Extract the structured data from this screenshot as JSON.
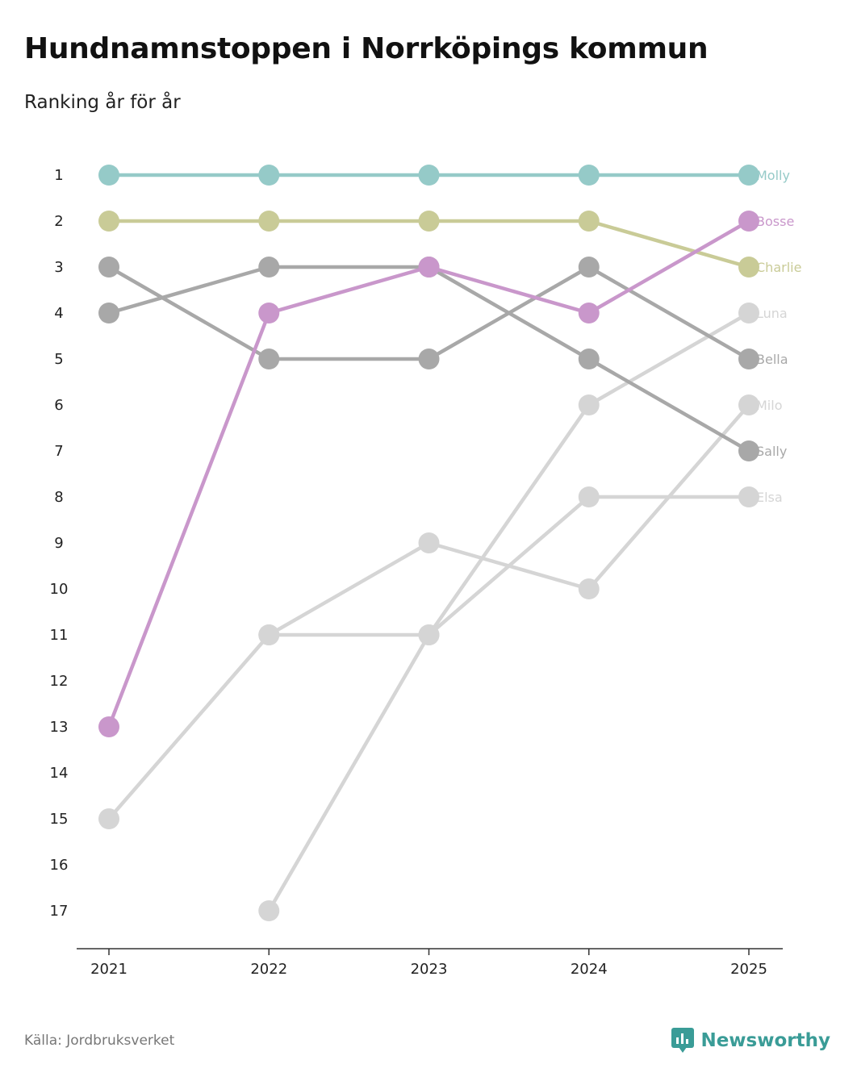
{
  "title": "Hundnamnstoppen i Norrköpings kommun",
  "subtitle": "Ranking år för år",
  "source": "Källa: Jordbruksverket",
  "brand": {
    "name": "Newsworthy",
    "icon": "newsworthy-logo-icon",
    "color": "#3a9c97"
  },
  "chart_data": {
    "type": "line",
    "title": "Hundnamnstoppen i Norrköpings kommun",
    "subtitle": "Ranking år för år",
    "xlabel": "",
    "ylabel": "",
    "x": [
      "2021",
      "2022",
      "2023",
      "2024",
      "2025"
    ],
    "y_ticks": [
      "1",
      "2",
      "3",
      "4",
      "5",
      "6",
      "7",
      "8",
      "9",
      "10",
      "11",
      "12",
      "13",
      "14",
      "15",
      "16",
      "17"
    ],
    "ylim": [
      1,
      17
    ],
    "y_inverted": true,
    "grid": false,
    "series": [
      {
        "name": "Elsa",
        "color": "#d5d5d5",
        "values": [
          15,
          11,
          11,
          8,
          8
        ]
      },
      {
        "name": "Milo",
        "color": "#d5d5d5",
        "values": [
          null,
          11,
          9,
          10,
          6
        ]
      },
      {
        "name": "Luna",
        "color": "#d5d5d5",
        "values": [
          null,
          17,
          11,
          6,
          4
        ]
      },
      {
        "name": "Sally",
        "color": "#a8a8a8",
        "values": [
          4,
          3,
          3,
          5,
          7
        ]
      },
      {
        "name": "Bella",
        "color": "#a8a8a8",
        "values": [
          3,
          5,
          5,
          3,
          5
        ]
      },
      {
        "name": "Charlie",
        "color": "#c9cb97",
        "values": [
          2,
          2,
          2,
          2,
          3
        ]
      },
      {
        "name": "Molly",
        "color": "#95cac8",
        "values": [
          1,
          1,
          1,
          1,
          1
        ]
      },
      {
        "name": "Bosse",
        "color": "#c997cb",
        "values": [
          13,
          4,
          3,
          4,
          2
        ]
      }
    ]
  }
}
